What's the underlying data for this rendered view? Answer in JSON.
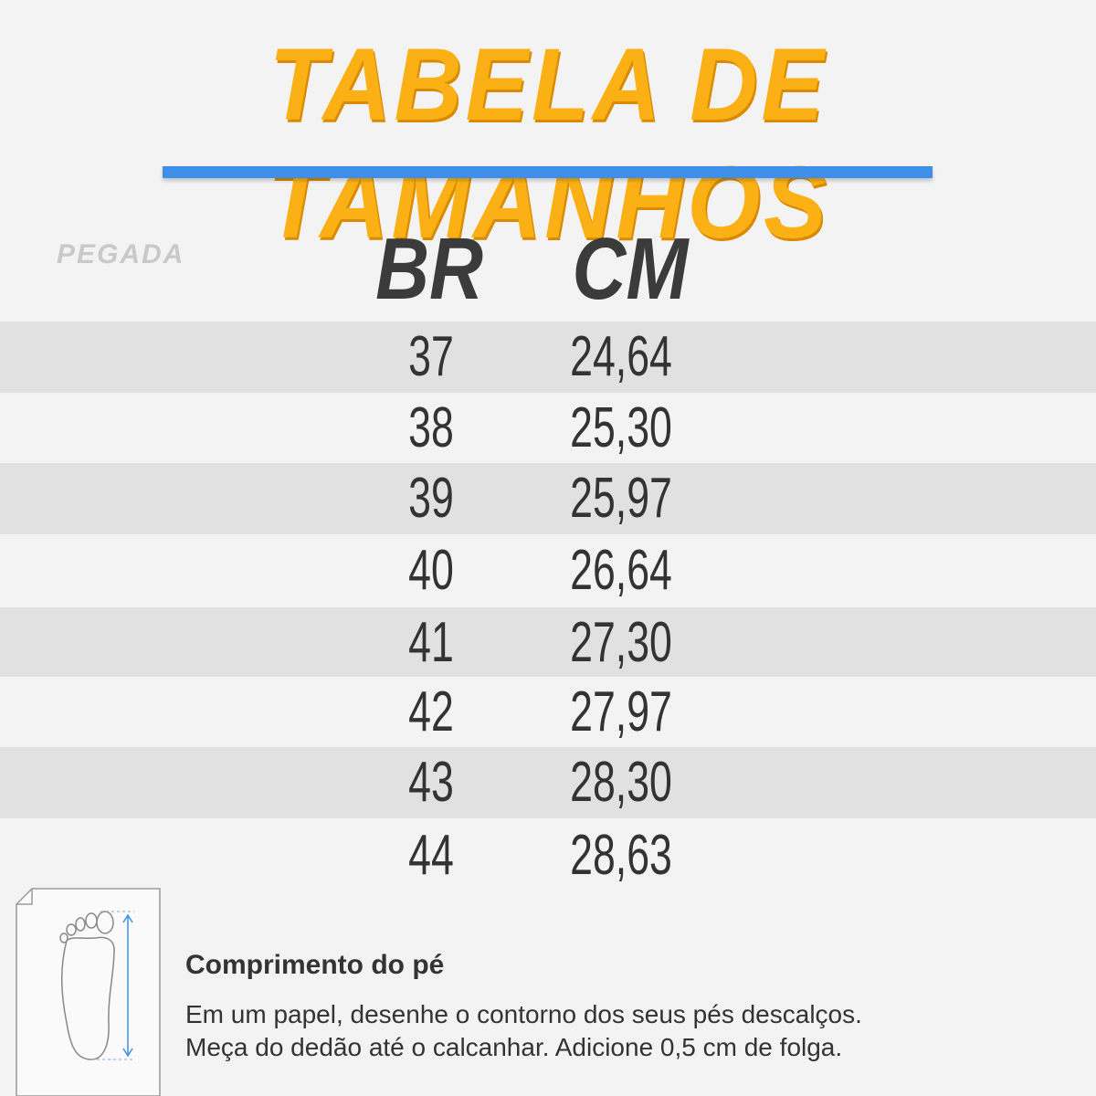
{
  "header": {
    "title": "TABELA DE TAMANHOS",
    "brand": "PEGADA"
  },
  "table": {
    "columns": [
      "BR",
      "CM"
    ],
    "rows": [
      [
        "37",
        "24,64"
      ],
      [
        "38",
        "25,30"
      ],
      [
        "39",
        "25,97"
      ],
      [
        "40",
        "26,64"
      ],
      [
        "41",
        "27,30"
      ],
      [
        "42",
        "27,97"
      ],
      [
        "43",
        "28,30"
      ],
      [
        "44",
        "28,63"
      ]
    ]
  },
  "footer": {
    "heading": "Comprimento do pé",
    "lines": [
      "Em um papel, desenhe o contorno dos seus pés descalços.",
      "Meça do dedão até o calcanhar. Adicione 0,5 cm de folga."
    ]
  }
}
